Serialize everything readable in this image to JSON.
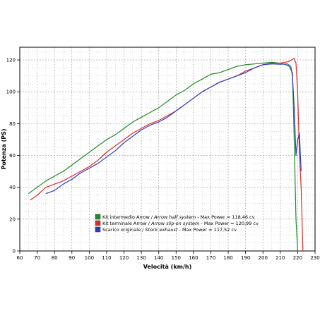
{
  "chart_data": {
    "type": "line",
    "title": "",
    "xlabel": "Velocità (km/h)",
    "ylabel": "Potenza (PS)",
    "xlim": [
      60,
      230
    ],
    "ylim": [
      0,
      128
    ],
    "x_ticks": [
      60,
      70,
      80,
      90,
      100,
      110,
      120,
      130,
      140,
      150,
      160,
      170,
      180,
      190,
      200,
      210,
      220,
      230
    ],
    "y_ticks": [
      0,
      20,
      40,
      60,
      80,
      100,
      120
    ],
    "x_tick_labels": [
      "60",
      "70",
      "80",
      "90",
      "100",
      "110",
      "120",
      "130",
      "140",
      "150",
      "160",
      "170",
      "180",
      "190",
      "200",
      "210",
      "220",
      "230"
    ],
    "y_tick_labels": [
      "0",
      "20",
      "40",
      "60",
      "80",
      "100",
      "120"
    ],
    "grid": true,
    "legend_position": "bottom-left",
    "series": [
      {
        "name": "Kit intermedio Arrow",
        "name_italic": "Arrow half system",
        "max_power": "Max Power = 118,46 cv",
        "color": "#1e8a28",
        "x": [
          65,
          70,
          75,
          80,
          85,
          90,
          95,
          100,
          105,
          110,
          115,
          120,
          125,
          130,
          135,
          140,
          145,
          150,
          155,
          160,
          165,
          170,
          175,
          180,
          185,
          190,
          195,
          200,
          205,
          210,
          213,
          215,
          217,
          218,
          219,
          220
        ],
        "values": [
          36,
          40,
          44,
          47,
          50,
          54,
          58,
          62,
          66,
          70,
          73,
          77,
          81,
          84,
          87,
          90,
          94,
          98,
          101,
          105,
          108,
          111,
          112,
          114,
          116,
          117,
          117.5,
          118,
          118.5,
          118,
          117,
          116,
          112,
          70,
          20,
          0
        ]
      },
      {
        "name": "Kit terminale Arrow",
        "name_italic": "Arrow slip-on system",
        "max_power": "Max Power = 120,99 cv",
        "color": "#e02a2a",
        "x": [
          66,
          70,
          75,
          80,
          85,
          90,
          95,
          100,
          105,
          110,
          115,
          120,
          125,
          130,
          135,
          140,
          145,
          150,
          155,
          160,
          165,
          170,
          175,
          180,
          185,
          190,
          195,
          200,
          205,
          210,
          215,
          218,
          219,
          220,
          221,
          222,
          223
        ],
        "values": [
          32,
          35,
          40,
          42,
          44,
          47,
          50,
          53,
          57,
          62,
          66,
          70,
          74,
          77,
          80,
          82,
          85,
          88,
          92,
          96,
          100,
          103,
          106,
          108,
          110,
          113,
          115,
          117,
          118,
          118,
          119,
          121,
          118,
          100,
          60,
          40,
          0
        ]
      },
      {
        "name": "Scarico originale",
        "name_italic": "Stock exhaust",
        "max_power": "Max Power = 117,52 cv",
        "color": "#2c3cc8",
        "x": [
          75,
          80,
          85,
          90,
          95,
          100,
          105,
          110,
          115,
          120,
          125,
          130,
          135,
          140,
          145,
          150,
          155,
          160,
          165,
          170,
          175,
          180,
          185,
          190,
          195,
          200,
          205,
          210,
          214,
          216,
          217,
          218,
          219,
          220,
          221,
          222
        ],
        "values": [
          36,
          38,
          42,
          45,
          49,
          52,
          55,
          59,
          63,
          68,
          72,
          76,
          79,
          81,
          84,
          88,
          92,
          96,
          100,
          103,
          106,
          108,
          110,
          112,
          115,
          117,
          117.5,
          117.3,
          117.5,
          116,
          110,
          90,
          60,
          70,
          74,
          50
        ]
      }
    ]
  },
  "legend": {
    "separator": " / ",
    "dash": " - "
  }
}
